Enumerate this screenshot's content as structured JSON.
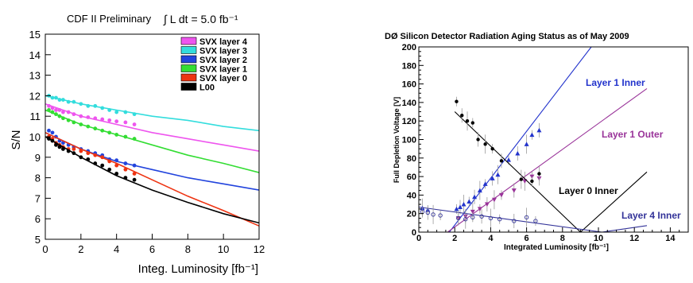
{
  "chart_data": [
    {
      "type": "scatter",
      "title": "CDF II Preliminary",
      "annotation": "∫ L dt = 5.0 fb⁻¹",
      "xlabel": "Integ. Luminosity [fb⁻¹]",
      "ylabel": "S/N",
      "xlim": [
        0,
        12
      ],
      "ylim": [
        5,
        15
      ],
      "xticks": [
        "0",
        "2",
        "4",
        "6",
        "8",
        "10",
        "12"
      ],
      "yticks": [
        "5",
        "6",
        "7",
        "8",
        "9",
        "10",
        "11",
        "12",
        "13",
        "14",
        "15"
      ],
      "legend_position": "top-right",
      "series": [
        {
          "name": "SVX layer 4",
          "color": "#ee55ee",
          "points": [
            [
              0.2,
              11.5
            ],
            [
              0.4,
              11.4
            ],
            [
              0.6,
              11.3
            ],
            [
              0.8,
              11.3
            ],
            [
              1.0,
              11.2
            ],
            [
              1.3,
              11.2
            ],
            [
              1.6,
              11.1
            ],
            [
              2.0,
              11.0
            ],
            [
              2.4,
              10.95
            ],
            [
              2.8,
              10.9
            ],
            [
              3.2,
              10.85
            ],
            [
              3.6,
              10.8
            ],
            [
              4.0,
              10.75
            ],
            [
              4.5,
              10.7
            ],
            [
              5.0,
              10.6
            ]
          ],
          "fit": [
            [
              0,
              11.6
            ],
            [
              2,
              11.0
            ],
            [
              4,
              10.6
            ],
            [
              6,
              10.2
            ],
            [
              8,
              9.9
            ],
            [
              10,
              9.6
            ],
            [
              12,
              9.3
            ]
          ]
        },
        {
          "name": "SVX layer 3",
          "color": "#33dddd",
          "points": [
            [
              0.2,
              12.0
            ],
            [
              0.4,
              11.9
            ],
            [
              0.6,
              11.9
            ],
            [
              0.8,
              11.8
            ],
            [
              1.0,
              11.8
            ],
            [
              1.3,
              11.7
            ],
            [
              1.6,
              11.7
            ],
            [
              2.0,
              11.6
            ],
            [
              2.4,
              11.5
            ],
            [
              2.8,
              11.5
            ],
            [
              3.2,
              11.4
            ],
            [
              3.6,
              11.3
            ],
            [
              4.0,
              11.2
            ],
            [
              4.5,
              11.2
            ],
            [
              5.0,
              11.1
            ]
          ],
          "fit": [
            [
              0,
              12.0
            ],
            [
              2,
              11.6
            ],
            [
              4,
              11.3
            ],
            [
              6,
              11.0
            ],
            [
              8,
              10.8
            ],
            [
              10,
              10.5
            ],
            [
              12,
              10.3
            ]
          ]
        },
        {
          "name": "SVX layer 2",
          "color": "#2244dd",
          "points": [
            [
              0.2,
              10.3
            ],
            [
              0.4,
              10.2
            ],
            [
              0.6,
              10.0
            ],
            [
              0.8,
              9.8
            ],
            [
              1.0,
              9.7
            ],
            [
              1.3,
              9.6
            ],
            [
              1.6,
              9.5
            ],
            [
              2.0,
              9.4
            ],
            [
              2.4,
              9.3
            ],
            [
              2.8,
              9.2
            ],
            [
              3.2,
              9.1
            ],
            [
              3.6,
              8.9
            ],
            [
              4.0,
              8.85
            ],
            [
              4.5,
              8.7
            ],
            [
              5.0,
              8.6
            ]
          ],
          "fit": [
            [
              0,
              10.2
            ],
            [
              2,
              9.4
            ],
            [
              4,
              8.8
            ],
            [
              6,
              8.4
            ],
            [
              8,
              8.0
            ],
            [
              10,
              7.7
            ],
            [
              12,
              7.4
            ]
          ]
        },
        {
          "name": "SVX layer 1",
          "color": "#33dd33",
          "points": [
            [
              0.2,
              11.3
            ],
            [
              0.4,
              11.2
            ],
            [
              0.6,
              11.1
            ],
            [
              0.8,
              11.0
            ],
            [
              1.0,
              10.9
            ],
            [
              1.3,
              10.8
            ],
            [
              1.6,
              10.7
            ],
            [
              2.0,
              10.6
            ],
            [
              2.4,
              10.5
            ],
            [
              2.8,
              10.4
            ],
            [
              3.2,
              10.3
            ],
            [
              3.6,
              10.2
            ],
            [
              4.0,
              10.1
            ],
            [
              4.5,
              10.0
            ],
            [
              5.0,
              9.9
            ]
          ],
          "fit": [
            [
              0,
              11.3
            ],
            [
              2,
              10.6
            ],
            [
              4,
              10.1
            ],
            [
              6,
              9.6
            ],
            [
              8,
              9.1
            ],
            [
              10,
              8.7
            ],
            [
              12,
              8.25
            ]
          ]
        },
        {
          "name": "SVX layer 0",
          "color": "#ee3311",
          "points": [
            [
              0.2,
              10.0
            ],
            [
              0.4,
              9.9
            ],
            [
              0.6,
              9.7
            ],
            [
              0.8,
              9.6
            ],
            [
              1.0,
              9.5
            ],
            [
              1.3,
              9.4
            ],
            [
              1.6,
              9.4
            ],
            [
              2.0,
              9.3
            ],
            [
              2.4,
              9.2
            ],
            [
              2.8,
              9.1
            ],
            [
              3.2,
              9.0
            ],
            [
              3.6,
              8.8
            ],
            [
              4.0,
              8.6
            ],
            [
              4.5,
              8.4
            ],
            [
              5.0,
              8.2
            ]
          ],
          "fit": [
            [
              0,
              10.2
            ],
            [
              2,
              9.4
            ],
            [
              4,
              8.7
            ],
            [
              6,
              7.9
            ],
            [
              8,
              7.1
            ],
            [
              10,
              6.4
            ],
            [
              12,
              5.65
            ]
          ]
        },
        {
          "name": "L00",
          "color": "#000000",
          "points": [
            [
              0.2,
              9.9
            ],
            [
              0.4,
              9.8
            ],
            [
              0.6,
              9.6
            ],
            [
              0.8,
              9.5
            ],
            [
              1.0,
              9.4
            ],
            [
              1.3,
              9.3
            ],
            [
              1.6,
              9.2
            ],
            [
              2.0,
              9.0
            ],
            [
              2.4,
              8.9
            ],
            [
              2.8,
              8.7
            ],
            [
              3.2,
              8.6
            ],
            [
              3.6,
              8.4
            ],
            [
              4.0,
              8.2
            ],
            [
              4.5,
              8.0
            ],
            [
              5.0,
              7.9
            ]
          ],
          "fit": [
            [
              0,
              10.0
            ],
            [
              2,
              9.0
            ],
            [
              4,
              8.1
            ],
            [
              6,
              7.4
            ],
            [
              8,
              6.8
            ],
            [
              10,
              6.25
            ],
            [
              12,
              5.8
            ]
          ]
        }
      ]
    },
    {
      "type": "scatter",
      "title": "DØ Silicon Detector Radiation Aging Status as of May 2009",
      "xlabel": "Integrated Luminosity [fb⁻¹]",
      "ylabel": "Full Depletion Voltage [V]",
      "xlim": [
        0,
        15
      ],
      "ylim": [
        0,
        200
      ],
      "xticks": [
        "0",
        "2",
        "4",
        "6",
        "8",
        "10",
        "12",
        "14"
      ],
      "yticks": [
        "0",
        "20",
        "40",
        "60",
        "80",
        "100",
        "120",
        "140",
        "160",
        "180",
        "200"
      ],
      "annotations": [
        {
          "text": "Layer 1 Inner",
          "color": "#2233cc"
        },
        {
          "text": "Layer 1 Outer",
          "color": "#993399"
        },
        {
          "text": "Layer 0 Inner",
          "color": "#000000"
        },
        {
          "text": "Layer 4 Inner",
          "color": "#333399"
        }
      ],
      "series": [
        {
          "name": "Layer 1 Inner",
          "color": "#2233cc",
          "points": [
            [
              2.1,
              25
            ],
            [
              2.3,
              27
            ],
            [
              2.5,
              30
            ],
            [
              2.8,
              33
            ],
            [
              3.1,
              38
            ],
            [
              3.4,
              45
            ],
            [
              3.7,
              52
            ],
            [
              4.1,
              58
            ],
            [
              4.4,
              62
            ],
            [
              5.0,
              78
            ],
            [
              5.5,
              85
            ],
            [
              6.0,
              95
            ],
            [
              6.3,
              105
            ],
            [
              6.7,
              110
            ],
            [
              0.2,
              26
            ],
            [
              0.5,
              24
            ]
          ],
          "fit": [
            [
              1.7,
              0
            ],
            [
              9.6,
              200
            ]
          ]
        },
        {
          "name": "Layer 1 Outer",
          "color": "#993399",
          "points": [
            [
              2.2,
              15
            ],
            [
              2.6,
              17
            ],
            [
              3.0,
              22
            ],
            [
              3.4,
              25
            ],
            [
              3.8,
              30
            ],
            [
              4.2,
              35
            ],
            [
              4.6,
              40
            ],
            [
              5.3,
              45
            ],
            [
              5.9,
              55
            ],
            [
              6.3,
              60
            ],
            [
              6.7,
              58
            ]
          ],
          "fit": [
            [
              1.6,
              0
            ],
            [
              12.7,
              155
            ]
          ]
        },
        {
          "name": "Layer 0 Inner",
          "color": "#000000",
          "points": [
            [
              2.1,
              141
            ],
            [
              2.4,
              126
            ],
            [
              2.7,
              120
            ],
            [
              3.0,
              118
            ],
            [
              3.3,
              100
            ],
            [
              3.7,
              95
            ],
            [
              4.1,
              90
            ],
            [
              4.6,
              77
            ],
            [
              5.7,
              57
            ],
            [
              6.3,
              55
            ],
            [
              6.7,
              63
            ]
          ],
          "fit": [
            [
              2.0,
              130
            ],
            [
              9.0,
              0
            ],
            [
              12.7,
              65
            ]
          ]
        },
        {
          "name": "Layer 4 Inner",
          "color": "#333399",
          "points": [
            [
              0.2,
              22
            ],
            [
              0.5,
              21
            ],
            [
              0.8,
              19
            ],
            [
              1.2,
              18
            ],
            [
              2.2,
              15
            ],
            [
              2.6,
              14
            ],
            [
              3.0,
              16
            ],
            [
              3.5,
              17
            ],
            [
              4.0,
              15
            ],
            [
              4.5,
              14
            ],
            [
              5.3,
              12
            ],
            [
              6.0,
              16
            ],
            [
              6.5,
              12
            ]
          ],
          "fit": [
            [
              0,
              27
            ],
            [
              10.2,
              0
            ],
            [
              12.7,
              7
            ]
          ]
        }
      ]
    }
  ]
}
